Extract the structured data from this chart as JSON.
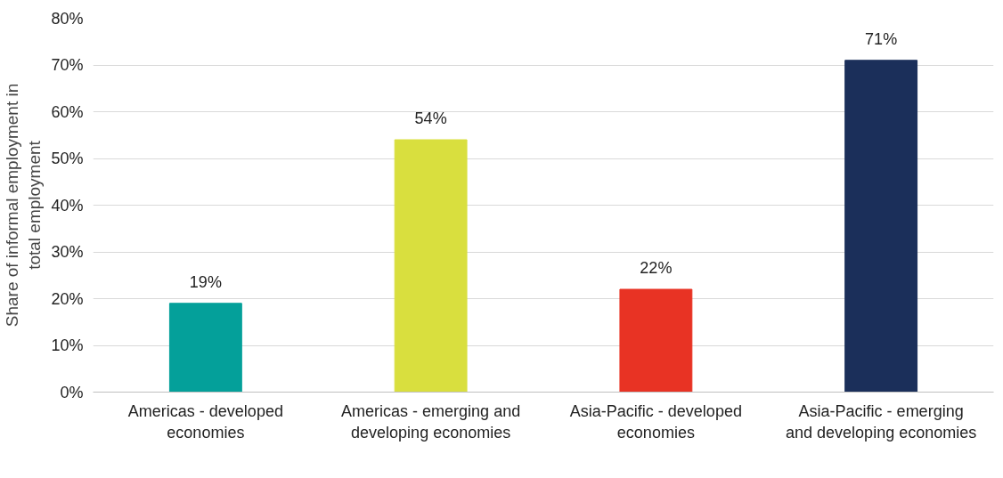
{
  "chart_data": {
    "type": "bar",
    "ylabel": "Share of informal employment in total employment",
    "categories": [
      "Americas - developed economies",
      "Americas - emerging and developing economies",
      "Asia-Pacific - developed economies",
      "Asia-Pacific - emerging and developing economies"
    ],
    "values": [
      19,
      54,
      22,
      71
    ],
    "colors": [
      "#04a09a",
      "#d9df3e",
      "#e83324",
      "#1b2f5a"
    ],
    "value_labels": [
      "19%",
      "54%",
      "22%",
      "71%"
    ],
    "ylim": [
      0,
      80
    ],
    "yticks": [
      {
        "value": 0,
        "label": "0%"
      },
      {
        "value": 10,
        "label": "10%"
      },
      {
        "value": 20,
        "label": "20%"
      },
      {
        "value": 30,
        "label": "30%"
      },
      {
        "value": 40,
        "label": "40%"
      },
      {
        "value": 50,
        "label": "50%"
      },
      {
        "value": 60,
        "label": "60%"
      },
      {
        "value": 70,
        "label": "70%"
      },
      {
        "value": 80,
        "label": "80%"
      }
    ],
    "grid": "y"
  }
}
